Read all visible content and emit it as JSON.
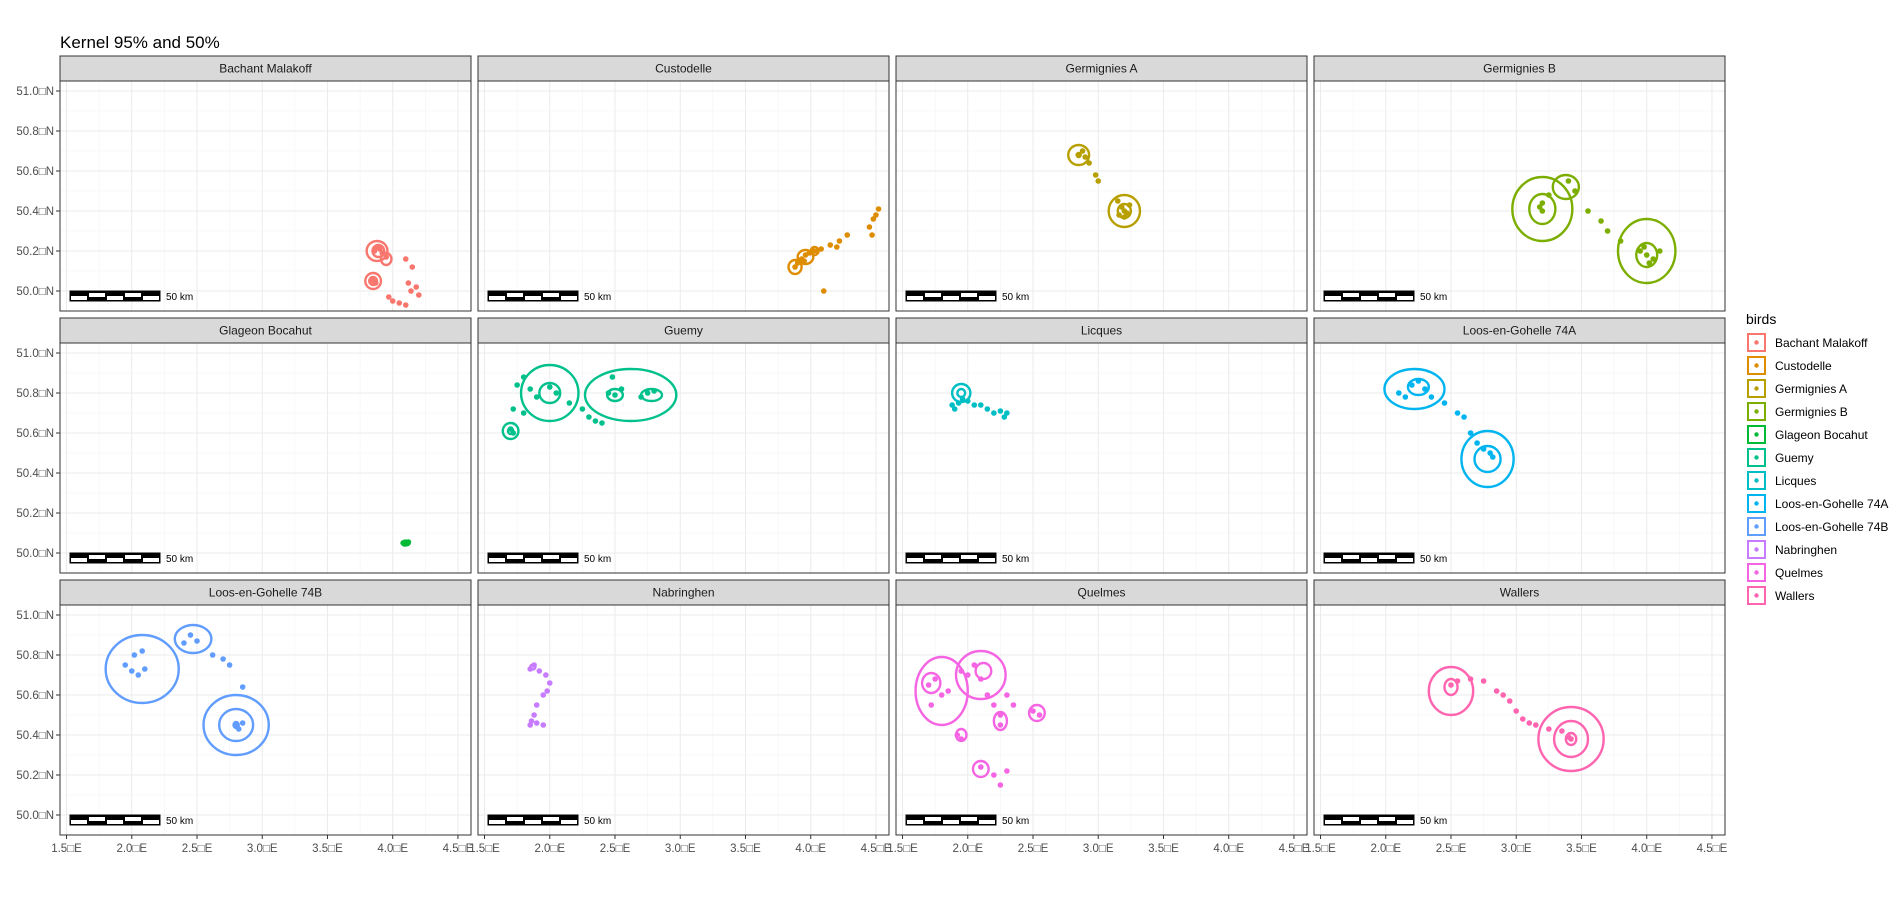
{
  "chart_data": {
    "type": "scatter",
    "title": "Kernel 95% and 50%",
    "xlabel": "",
    "ylabel": "",
    "xlim": [
      1.45,
      4.6
    ],
    "ylim": [
      49.9,
      51.05
    ],
    "x_ticks": [
      1.5,
      2.0,
      2.5,
      3.0,
      3.5,
      4.0,
      4.5
    ],
    "x_tick_labels": [
      "1.5□E",
      "2.0□E",
      "2.5□E",
      "3.0□E",
      "3.5□E",
      "4.0□E",
      "4.5□E"
    ],
    "y_ticks": [
      50.0,
      50.2,
      50.4,
      50.6,
      50.8,
      51.0
    ],
    "y_tick_labels": [
      "50.0□N",
      "50.2□N",
      "50.4□N",
      "50.6□N",
      "50.8□N",
      "51.0□N"
    ],
    "grid": true,
    "legend": {
      "title": "birds",
      "position": "right"
    },
    "scale_bar_label": "50 km",
    "panels": [
      {
        "name": "Bachant Malakoff",
        "color": "#F8766D",
        "points": [
          [
            3.86,
            50.2
          ],
          [
            3.88,
            50.22
          ],
          [
            3.9,
            50.21
          ],
          [
            3.92,
            50.19
          ],
          [
            3.95,
            50.17
          ],
          [
            3.84,
            50.06
          ],
          [
            3.87,
            50.04
          ],
          [
            3.85,
            50.05
          ],
          [
            4.1,
            50.16
          ],
          [
            4.15,
            50.12
          ],
          [
            4.12,
            50.04
          ],
          [
            4.18,
            50.02
          ],
          [
            4.2,
            49.98
          ],
          [
            4.0,
            49.95
          ],
          [
            4.05,
            49.94
          ],
          [
            4.1,
            49.93
          ],
          [
            3.97,
            49.97
          ],
          [
            4.14,
            50.0
          ]
        ],
        "contours": [
          {
            "cx": 3.88,
            "cy": 50.2,
            "rx": 0.08,
            "ry": 0.05
          },
          {
            "cx": 3.89,
            "cy": 50.2,
            "rx": 0.045,
            "ry": 0.03
          },
          {
            "cx": 3.85,
            "cy": 50.05,
            "rx": 0.06,
            "ry": 0.04
          },
          {
            "cx": 3.85,
            "cy": 50.05,
            "rx": 0.03,
            "ry": 0.02
          },
          {
            "cx": 3.95,
            "cy": 50.16,
            "rx": 0.04,
            "ry": 0.03
          }
        ]
      },
      {
        "name": "Custodelle",
        "color": "#DE8C00",
        "points": [
          [
            3.88,
            50.12
          ],
          [
            3.9,
            50.14
          ],
          [
            3.93,
            50.16
          ],
          [
            3.96,
            50.18
          ],
          [
            3.99,
            50.19
          ],
          [
            4.02,
            50.2
          ],
          [
            4.08,
            50.21
          ],
          [
            4.15,
            50.23
          ],
          [
            4.22,
            50.25
          ],
          [
            4.28,
            50.28
          ],
          [
            4.45,
            50.32
          ],
          [
            4.48,
            50.36
          ],
          [
            4.5,
            50.38
          ],
          [
            4.52,
            50.41
          ],
          [
            4.47,
            50.28
          ],
          [
            4.1,
            50.0
          ],
          [
            3.95,
            50.15
          ],
          [
            4.05,
            50.2
          ],
          [
            4.2,
            50.22
          ]
        ],
        "contours": [
          {
            "cx": 3.88,
            "cy": 50.12,
            "rx": 0.05,
            "ry": 0.035
          },
          {
            "cx": 3.96,
            "cy": 50.17,
            "rx": 0.06,
            "ry": 0.035
          },
          {
            "cx": 4.03,
            "cy": 50.2,
            "rx": 0.03,
            "ry": 0.02
          }
        ]
      },
      {
        "name": "Germignies A",
        "color": "#B79F00",
        "points": [
          [
            2.85,
            50.68
          ],
          [
            2.88,
            50.7
          ],
          [
            2.9,
            50.67
          ],
          [
            2.93,
            50.64
          ],
          [
            2.98,
            50.58
          ],
          [
            3.0,
            50.55
          ],
          [
            3.15,
            50.45
          ],
          [
            3.18,
            50.42
          ],
          [
            3.2,
            50.4
          ],
          [
            3.22,
            50.39
          ],
          [
            3.2,
            50.37
          ],
          [
            3.16,
            50.38
          ],
          [
            3.24,
            50.43
          ]
        ],
        "contours": [
          {
            "cx": 2.85,
            "cy": 50.68,
            "rx": 0.08,
            "ry": 0.05
          },
          {
            "cx": 2.85,
            "cy": 50.68,
            "rx": 0.015,
            "ry": 0.01
          },
          {
            "cx": 3.2,
            "cy": 50.4,
            "rx": 0.12,
            "ry": 0.08
          },
          {
            "cx": 3.2,
            "cy": 50.4,
            "rx": 0.05,
            "ry": 0.035
          }
        ]
      },
      {
        "name": "Germignies B",
        "color": "#7CAE00",
        "points": [
          [
            3.18,
            50.42
          ],
          [
            3.2,
            50.44
          ],
          [
            3.2,
            50.4
          ],
          [
            3.25,
            50.48
          ],
          [
            3.4,
            50.55
          ],
          [
            3.45,
            50.5
          ],
          [
            3.55,
            50.4
          ],
          [
            3.65,
            50.35
          ],
          [
            3.7,
            50.3
          ],
          [
            3.8,
            50.25
          ],
          [
            3.95,
            50.2
          ],
          [
            4.0,
            50.18
          ],
          [
            4.05,
            50.16
          ],
          [
            4.1,
            50.2
          ],
          [
            3.98,
            50.22
          ],
          [
            4.02,
            50.14
          ]
        ],
        "contours": [
          {
            "cx": 3.2,
            "cy": 50.41,
            "rx": 0.23,
            "ry": 0.16
          },
          {
            "cx": 3.2,
            "cy": 50.41,
            "rx": 0.1,
            "ry": 0.075
          },
          {
            "cx": 3.38,
            "cy": 50.52,
            "rx": 0.1,
            "ry": 0.06
          },
          {
            "cx": 4.0,
            "cy": 50.2,
            "rx": 0.22,
            "ry": 0.16
          },
          {
            "cx": 4.0,
            "cy": 50.18,
            "rx": 0.08,
            "ry": 0.06
          }
        ]
      },
      {
        "name": "Glageon Bocahut",
        "color": "#00BA38",
        "points": [
          [
            4.08,
            50.05
          ],
          [
            4.1,
            50.05
          ],
          [
            4.12,
            50.055
          ],
          [
            4.09,
            50.045
          ]
        ],
        "contours": [
          {
            "cx": 4.1,
            "cy": 50.05,
            "rx": 0.03,
            "ry": 0.012
          }
        ]
      },
      {
        "name": "Guemy",
        "color": "#00C08B",
        "points": [
          [
            1.7,
            50.62
          ],
          [
            1.72,
            50.6
          ],
          [
            1.75,
            50.84
          ],
          [
            1.8,
            50.88
          ],
          [
            1.85,
            50.82
          ],
          [
            1.9,
            50.78
          ],
          [
            2.0,
            50.83
          ],
          [
            2.05,
            50.8
          ],
          [
            2.15,
            50.75
          ],
          [
            2.25,
            50.72
          ],
          [
            2.3,
            50.68
          ],
          [
            2.35,
            50.66
          ],
          [
            2.4,
            50.65
          ],
          [
            2.45,
            50.8
          ],
          [
            2.5,
            50.79
          ],
          [
            2.55,
            50.82
          ],
          [
            2.7,
            50.78
          ],
          [
            2.75,
            50.8
          ],
          [
            2.8,
            50.81
          ],
          [
            2.48,
            50.88
          ],
          [
            1.72,
            50.72
          ],
          [
            1.8,
            50.7
          ]
        ],
        "contours": [
          {
            "cx": 2.0,
            "cy": 50.8,
            "rx": 0.22,
            "ry": 0.14
          },
          {
            "cx": 2.0,
            "cy": 50.8,
            "rx": 0.08,
            "ry": 0.05
          },
          {
            "cx": 2.62,
            "cy": 50.79,
            "rx": 0.35,
            "ry": 0.13
          },
          {
            "cx": 2.5,
            "cy": 50.79,
            "rx": 0.06,
            "ry": 0.03
          },
          {
            "cx": 2.78,
            "cy": 50.79,
            "rx": 0.08,
            "ry": 0.03
          },
          {
            "cx": 1.7,
            "cy": 50.61,
            "rx": 0.06,
            "ry": 0.04
          },
          {
            "cx": 1.7,
            "cy": 50.61,
            "rx": 0.02,
            "ry": 0.015
          }
        ]
      },
      {
        "name": "Licques",
        "color": "#00BFC4",
        "points": [
          [
            1.88,
            50.74
          ],
          [
            1.9,
            50.72
          ],
          [
            1.93,
            50.75
          ],
          [
            1.96,
            50.77
          ],
          [
            2.0,
            50.76
          ],
          [
            2.05,
            50.74
          ],
          [
            2.1,
            50.74
          ],
          [
            2.15,
            50.72
          ],
          [
            2.2,
            50.7
          ],
          [
            2.25,
            50.71
          ],
          [
            2.28,
            50.68
          ],
          [
            2.3,
            50.7
          ]
        ],
        "contours": [
          {
            "cx": 1.95,
            "cy": 50.8,
            "rx": 0.07,
            "ry": 0.045
          },
          {
            "cx": 1.95,
            "cy": 50.8,
            "rx": 0.03,
            "ry": 0.02
          }
        ]
      },
      {
        "name": "Loos-en-Gohelle 74A",
        "color": "#00B4EF",
        "points": [
          [
            2.1,
            50.8
          ],
          [
            2.2,
            50.84
          ],
          [
            2.25,
            50.86
          ],
          [
            2.3,
            50.82
          ],
          [
            2.35,
            50.78
          ],
          [
            2.45,
            50.75
          ],
          [
            2.55,
            50.7
          ],
          [
            2.6,
            50.68
          ],
          [
            2.65,
            50.6
          ],
          [
            2.7,
            50.55
          ],
          [
            2.75,
            50.52
          ],
          [
            2.8,
            50.5
          ],
          [
            2.82,
            50.48
          ],
          [
            2.15,
            50.78
          ]
        ],
        "contours": [
          {
            "cx": 2.22,
            "cy": 50.82,
            "rx": 0.23,
            "ry": 0.1
          },
          {
            "cx": 2.25,
            "cy": 50.83,
            "rx": 0.08,
            "ry": 0.04
          },
          {
            "cx": 2.78,
            "cy": 50.47,
            "rx": 0.2,
            "ry": 0.14
          },
          {
            "cx": 2.78,
            "cy": 50.47,
            "rx": 0.1,
            "ry": 0.065
          }
        ]
      },
      {
        "name": "Loos-en-Gohelle 74B",
        "color": "#619CFF",
        "points": [
          [
            1.95,
            50.75
          ],
          [
            2.0,
            50.72
          ],
          [
            2.05,
            50.7
          ],
          [
            2.1,
            50.73
          ],
          [
            2.02,
            50.8
          ],
          [
            2.08,
            50.82
          ],
          [
            2.4,
            50.86
          ],
          [
            2.45,
            50.9
          ],
          [
            2.5,
            50.87
          ],
          [
            2.62,
            50.8
          ],
          [
            2.7,
            50.78
          ],
          [
            2.75,
            50.75
          ],
          [
            2.85,
            50.64
          ],
          [
            2.8,
            50.45
          ],
          [
            2.82,
            50.43
          ],
          [
            2.85,
            50.46
          ]
        ],
        "contours": [
          {
            "cx": 2.08,
            "cy": 50.73,
            "rx": 0.28,
            "ry": 0.17
          },
          {
            "cx": 2.47,
            "cy": 50.88,
            "rx": 0.14,
            "ry": 0.07
          },
          {
            "cx": 2.8,
            "cy": 50.45,
            "rx": 0.25,
            "ry": 0.15
          },
          {
            "cx": 2.8,
            "cy": 50.45,
            "rx": 0.13,
            "ry": 0.08
          },
          {
            "cx": 2.8,
            "cy": 50.45,
            "rx": 0.02,
            "ry": 0.015
          }
        ]
      },
      {
        "name": "Nabringhen",
        "color": "#C77CFF",
        "points": [
          [
            1.85,
            50.73
          ],
          [
            1.88,
            50.75
          ],
          [
            1.92,
            50.72
          ],
          [
            1.97,
            50.7
          ],
          [
            2.0,
            50.66
          ],
          [
            1.98,
            50.62
          ],
          [
            1.95,
            50.6
          ],
          [
            1.9,
            50.55
          ],
          [
            1.88,
            50.5
          ],
          [
            1.86,
            50.47
          ],
          [
            1.85,
            50.45
          ],
          [
            1.9,
            50.46
          ],
          [
            1.95,
            50.45
          ]
        ],
        "contours": [
          {
            "cx": 1.87,
            "cy": 50.74,
            "rx": 0.02,
            "ry": 0.012
          }
        ]
      },
      {
        "name": "Quelmes",
        "color": "#F564E3",
        "points": [
          [
            1.7,
            50.65
          ],
          [
            1.75,
            50.68
          ],
          [
            1.8,
            50.6
          ],
          [
            1.72,
            50.55
          ],
          [
            1.85,
            50.62
          ],
          [
            1.95,
            50.72
          ],
          [
            2.0,
            50.7
          ],
          [
            2.05,
            50.75
          ],
          [
            2.1,
            50.68
          ],
          [
            2.15,
            50.6
          ],
          [
            2.2,
            50.55
          ],
          [
            2.25,
            50.5
          ],
          [
            2.25,
            50.45
          ],
          [
            2.3,
            50.6
          ],
          [
            2.35,
            50.55
          ],
          [
            2.5,
            50.52
          ],
          [
            2.55,
            50.5
          ],
          [
            1.92,
            50.4
          ],
          [
            1.95,
            50.38
          ],
          [
            2.1,
            50.24
          ],
          [
            2.2,
            50.2
          ],
          [
            2.25,
            50.15
          ],
          [
            2.3,
            50.22
          ]
        ],
        "contours": [
          {
            "cx": 1.8,
            "cy": 50.62,
            "rx": 0.2,
            "ry": 0.17
          },
          {
            "cx": 1.72,
            "cy": 50.66,
            "rx": 0.07,
            "ry": 0.05
          },
          {
            "cx": 2.1,
            "cy": 50.7,
            "rx": 0.19,
            "ry": 0.12
          },
          {
            "cx": 2.12,
            "cy": 50.72,
            "rx": 0.06,
            "ry": 0.04
          },
          {
            "cx": 2.53,
            "cy": 50.51,
            "rx": 0.06,
            "ry": 0.04
          },
          {
            "cx": 2.1,
            "cy": 50.23,
            "rx": 0.06,
            "ry": 0.04
          },
          {
            "cx": 2.25,
            "cy": 50.47,
            "rx": 0.05,
            "ry": 0.045
          },
          {
            "cx": 1.95,
            "cy": 50.4,
            "rx": 0.04,
            "ry": 0.03
          }
        ]
      },
      {
        "name": "Wallers",
        "color": "#FF64B0",
        "points": [
          [
            2.5,
            50.65
          ],
          [
            2.55,
            50.67
          ],
          [
            2.65,
            50.68
          ],
          [
            2.75,
            50.67
          ],
          [
            2.85,
            50.62
          ],
          [
            2.9,
            50.6
          ],
          [
            2.95,
            50.57
          ],
          [
            3.0,
            50.52
          ],
          [
            3.05,
            50.48
          ],
          [
            3.1,
            50.46
          ],
          [
            3.15,
            50.45
          ],
          [
            3.25,
            50.43
          ],
          [
            3.35,
            50.42
          ],
          [
            3.4,
            50.39
          ],
          [
            3.42,
            50.38
          ]
        ],
        "contours": [
          {
            "cx": 2.5,
            "cy": 50.62,
            "rx": 0.17,
            "ry": 0.12
          },
          {
            "cx": 2.5,
            "cy": 50.64,
            "rx": 0.05,
            "ry": 0.04
          },
          {
            "cx": 3.42,
            "cy": 50.38,
            "rx": 0.25,
            "ry": 0.16
          },
          {
            "cx": 3.42,
            "cy": 50.38,
            "rx": 0.13,
            "ry": 0.09
          },
          {
            "cx": 3.42,
            "cy": 50.38,
            "rx": 0.04,
            "ry": 0.03
          }
        ]
      }
    ]
  }
}
